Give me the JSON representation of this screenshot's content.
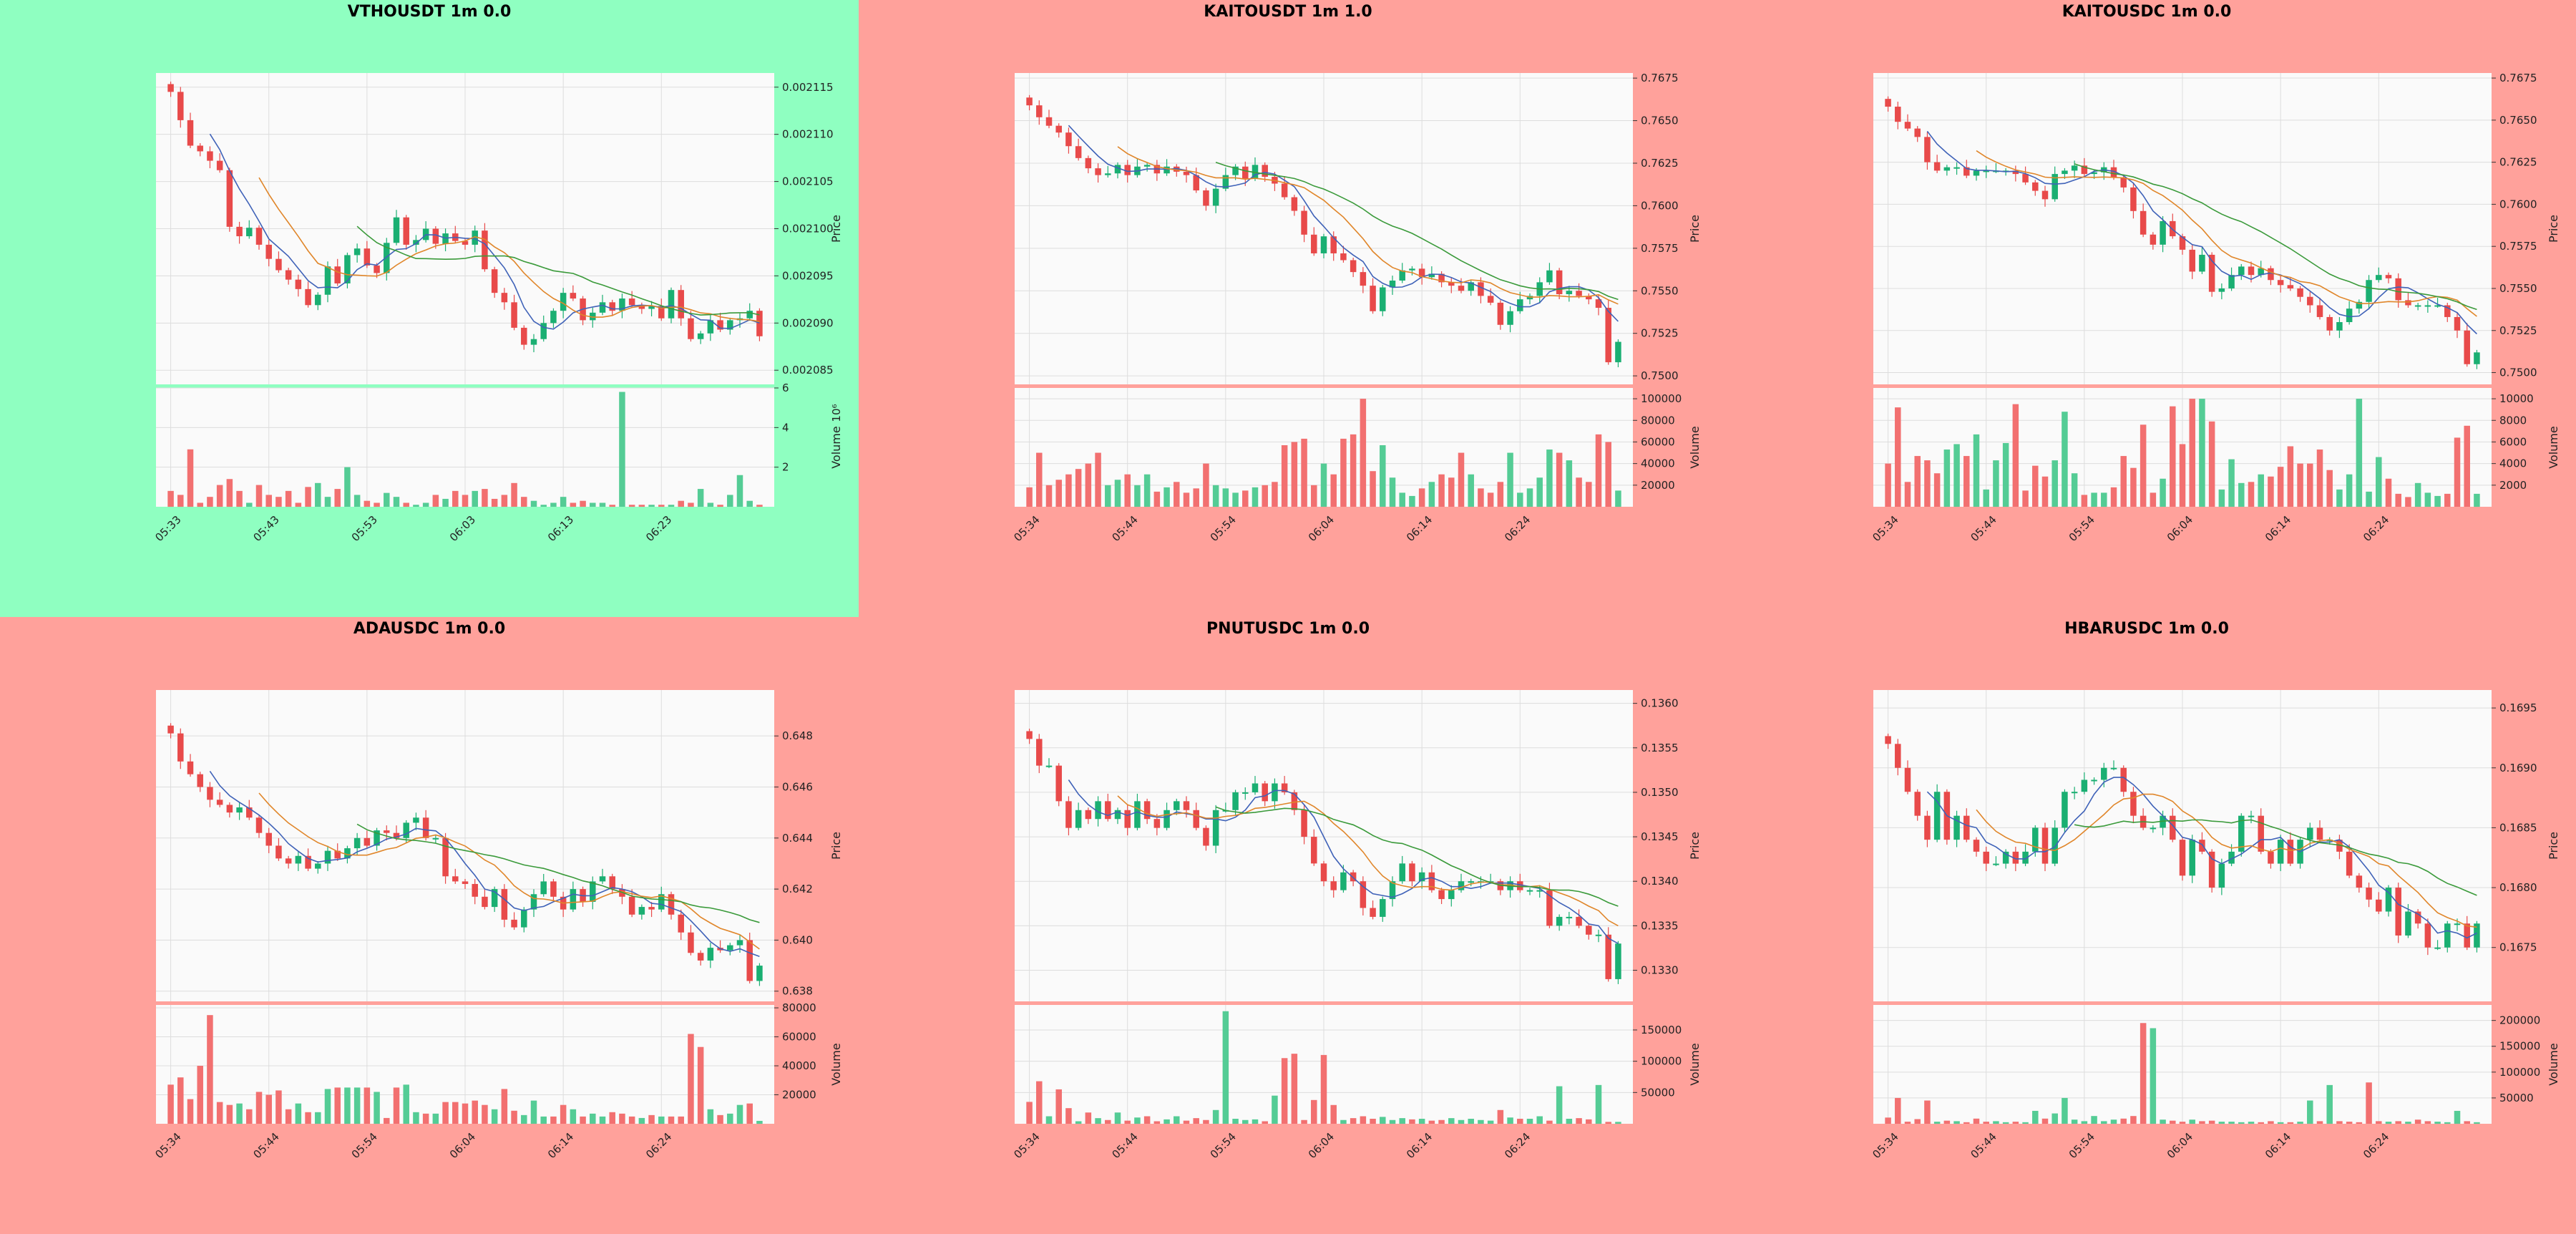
{
  "colors": {
    "page_bg": "#ffa19b",
    "highlight_bg": "#8fffc1",
    "plot_bg": "#fafafa",
    "grid": "#dddddd",
    "up": "#1aaf72",
    "down": "#e84a4a",
    "vol_up": "#54cc95",
    "vol_down": "#f27070",
    "ma_fast": "#3f62b8",
    "ma_mid": "#e0862a",
    "ma_slow": "#3a9a3a"
  },
  "chart_data": [
    {
      "type": "candlestick",
      "title": "VTHOUSDT 1m 0.0",
      "highlight": true,
      "ylabel": "Price",
      "vlabel": "Volume",
      "vlabel_exp": "10⁶",
      "ylim": [
        0.0020835,
        0.0021165
      ],
      "yticks": [
        0.002085,
        0.00209,
        0.002095,
        0.0021,
        0.002105,
        0.00211,
        0.002115
      ],
      "ytick_labels": [
        "0.002085",
        "0.002090",
        "0.002095",
        "0.002100",
        "0.002105",
        "0.002110",
        "0.002115"
      ],
      "vlim": [
        0,
        6
      ],
      "vticks": [
        2,
        4,
        6
      ],
      "vtick_labels": [
        "2",
        "4",
        "6"
      ],
      "xticks": [
        0,
        10,
        20,
        30,
        40,
        50
      ],
      "xtick_labels": [
        "05:33",
        "05:43",
        "05:53",
        "06:03",
        "06:13",
        "06:23"
      ],
      "n": 61,
      "close": [
        0.0021145,
        0.0021115,
        0.0021088,
        0.0021082,
        0.0021072,
        0.0021062,
        0.0021002,
        0.0020992,
        0.0021001,
        0.0020983,
        0.0020968,
        0.0020956,
        0.0020946,
        0.0020936,
        0.0020919,
        0.002093,
        0.002096,
        0.0020942,
        0.0020972,
        0.0020979,
        0.0020961,
        0.0020953,
        0.0020985,
        0.0021012,
        0.0020983,
        0.0020988,
        0.0021,
        0.0020984,
        0.0020995,
        0.0020987,
        0.0020983,
        0.0020998,
        0.0020957,
        0.0020932,
        0.0020922,
        0.0020895,
        0.0020877,
        0.0020883,
        0.00209,
        0.0020913,
        0.0020932,
        0.0020926,
        0.0020903,
        0.0020911,
        0.0020922,
        0.0020913,
        0.0020926,
        0.0020919,
        0.0020915,
        0.0020918,
        0.0020905,
        0.0020935,
        0.0020905,
        0.0020883,
        0.0020889,
        0.0020903,
        0.0020893,
        0.0020903,
        0.0020905,
        0.0020913,
        0.0020886
      ],
      "volume": [
        0.8,
        0.6,
        2.9,
        0.2,
        0.5,
        1.1,
        1.4,
        0.8,
        0.2,
        1.1,
        0.6,
        0.5,
        0.8,
        0.2,
        1.0,
        1.2,
        0.5,
        0.9,
        2.0,
        0.6,
        0.3,
        0.2,
        0.7,
        0.5,
        0.2,
        0.1,
        0.2,
        0.6,
        0.4,
        0.8,
        0.6,
        0.8,
        0.9,
        0.4,
        0.6,
        1.2,
        0.5,
        0.3,
        0.1,
        0.2,
        0.5,
        0.2,
        0.3,
        0.2,
        0.2,
        0.1,
        5.8,
        0.1,
        0.1,
        0.1,
        0.1,
        0.1,
        0.3,
        0.2,
        0.9,
        0.2,
        0.1,
        0.6,
        1.6,
        0.3,
        0.1
      ]
    },
    {
      "type": "candlestick",
      "title": "KAITOUSDT 1m 1.0",
      "highlight": false,
      "ylabel": "Price",
      "vlabel": "Volume",
      "vlabel_exp": "",
      "ylim": [
        0.7495,
        0.7678
      ],
      "yticks": [
        0.75,
        0.7525,
        0.755,
        0.7575,
        0.76,
        0.7625,
        0.765,
        0.7675
      ],
      "ytick_labels": [
        "0.7500",
        "0.7525",
        "0.7550",
        "0.7575",
        "0.7600",
        "0.7625",
        "0.7650",
        "0.7675"
      ],
      "vlim": [
        0,
        110000
      ],
      "vticks": [
        20000,
        40000,
        60000,
        80000,
        100000
      ],
      "vtick_labels": [
        "20000",
        "40000",
        "60000",
        "80000",
        "100000"
      ],
      "xticks": [
        0,
        10,
        20,
        30,
        40,
        50
      ],
      "xtick_labels": [
        "05:34",
        "05:44",
        "05:54",
        "06:04",
        "06:14",
        "06:24"
      ],
      "n": 61,
      "close": [
        0.7659,
        0.7652,
        0.7647,
        0.7643,
        0.7635,
        0.7628,
        0.7622,
        0.7618,
        0.7619,
        0.7624,
        0.7618,
        0.7623,
        0.7624,
        0.7619,
        0.7623,
        0.762,
        0.7618,
        0.7609,
        0.76,
        0.761,
        0.7618,
        0.7623,
        0.7616,
        0.7624,
        0.7617,
        0.7613,
        0.7605,
        0.7597,
        0.7583,
        0.7572,
        0.7582,
        0.7572,
        0.7568,
        0.7561,
        0.7553,
        0.7538,
        0.7552,
        0.7556,
        0.7562,
        0.7563,
        0.7558,
        0.756,
        0.7555,
        0.7553,
        0.755,
        0.7555,
        0.7547,
        0.7543,
        0.753,
        0.7538,
        0.7545,
        0.7547,
        0.7555,
        0.7562,
        0.7548,
        0.755,
        0.7547,
        0.7545,
        0.754,
        0.7508,
        0.752
      ],
      "volume": [
        18000,
        50000,
        20000,
        25000,
        30000,
        35000,
        40000,
        50000,
        20000,
        25000,
        30000,
        20000,
        30000,
        14000,
        18000,
        23000,
        13000,
        17000,
        40000,
        20000,
        17000,
        13000,
        15000,
        18000,
        20000,
        23000,
        57000,
        60000,
        63000,
        20000,
        40000,
        30000,
        63000,
        67000,
        100000,
        33000,
        57000,
        27000,
        13000,
        10000,
        17000,
        23000,
        30000,
        27000,
        50000,
        30000,
        17000,
        13000,
        23000,
        50000,
        13000,
        17000,
        27000,
        53000,
        50000,
        43000,
        27000,
        23000,
        67000,
        60000,
        15000
      ]
    },
    {
      "type": "candlestick",
      "title": "KAITOUSDC 1m 0.0",
      "highlight": false,
      "ylabel": "Price",
      "vlabel": "Volume",
      "vlabel_exp": "",
      "ylim": [
        0.7493,
        0.7678
      ],
      "yticks": [
        0.75,
        0.7525,
        0.755,
        0.7575,
        0.76,
        0.7625,
        0.765,
        0.7675
      ],
      "ytick_labels": [
        "0.7500",
        "0.7525",
        "0.7550",
        "0.7575",
        "0.7600",
        "0.7625",
        "0.7650",
        "0.7675"
      ],
      "vlim": [
        0,
        11000
      ],
      "vticks": [
        2000,
        4000,
        6000,
        8000,
        10000
      ],
      "vtick_labels": [
        "2000",
        "4000",
        "6000",
        "8000",
        "10000"
      ],
      "xticks": [
        0,
        10,
        20,
        30,
        40,
        50
      ],
      "xtick_labels": [
        "05:34",
        "05:44",
        "05:54",
        "06:04",
        "06:14",
        "06:24"
      ],
      "n": 61,
      "close": [
        0.7658,
        0.7649,
        0.7645,
        0.764,
        0.7625,
        0.762,
        0.7622,
        0.7622,
        0.7617,
        0.762,
        0.762,
        0.762,
        0.762,
        0.7618,
        0.7613,
        0.7608,
        0.7603,
        0.7618,
        0.762,
        0.7623,
        0.7618,
        0.7619,
        0.7622,
        0.7616,
        0.761,
        0.7596,
        0.7582,
        0.7576,
        0.759,
        0.7581,
        0.7573,
        0.756,
        0.757,
        0.7548,
        0.755,
        0.7558,
        0.7563,
        0.7558,
        0.7562,
        0.7555,
        0.7552,
        0.755,
        0.7545,
        0.754,
        0.7533,
        0.7525,
        0.753,
        0.7538,
        0.7542,
        0.7555,
        0.7558,
        0.7556,
        0.7543,
        0.754,
        0.754,
        0.754,
        0.754,
        0.7533,
        0.7525,
        0.7505,
        0.7512
      ],
      "volume": [
        4000,
        9200,
        2300,
        4700,
        4300,
        3100,
        5300,
        5800,
        4700,
        6700,
        1600,
        4300,
        5900,
        9500,
        1500,
        3800,
        2800,
        4300,
        8800,
        3100,
        1100,
        1300,
        1300,
        1800,
        4700,
        3600,
        7600,
        1300,
        2600,
        9300,
        5800,
        10000,
        10000,
        7900,
        1600,
        4400,
        2200,
        2300,
        3000,
        2800,
        3700,
        5600,
        4000,
        4000,
        5300,
        3400,
        1600,
        3000,
        10000,
        1400,
        4600,
        2600,
        1200,
        900,
        2200,
        1300,
        1000,
        1200,
        6400,
        7500,
        1200
      ]
    },
    {
      "type": "candlestick",
      "title": "ADAUSDC 1m 0.0",
      "highlight": false,
      "ylabel": "Price",
      "vlabel": "Volume",
      "vlabel_exp": "",
      "ylim": [
        0.6376,
        0.6498
      ],
      "yticks": [
        0.638,
        0.64,
        0.642,
        0.644,
        0.646,
        0.648
      ],
      "ytick_labels": [
        "0.638",
        "0.640",
        "0.642",
        "0.644",
        "0.646",
        "0.648"
      ],
      "vlim": [
        0,
        82000
      ],
      "vticks": [
        20000,
        40000,
        60000,
        80000
      ],
      "vtick_labels": [
        "20000",
        "40000",
        "60000",
        "80000"
      ],
      "xticks": [
        0,
        10,
        20,
        30,
        40,
        50
      ],
      "xtick_labels": [
        "05:34",
        "05:44",
        "05:54",
        "06:04",
        "06:14",
        "06:24"
      ],
      "n": 61,
      "close": [
        0.6481,
        0.647,
        0.6465,
        0.646,
        0.6455,
        0.6453,
        0.645,
        0.6452,
        0.6448,
        0.6442,
        0.6437,
        0.6432,
        0.643,
        0.6433,
        0.6428,
        0.643,
        0.6435,
        0.6432,
        0.6436,
        0.644,
        0.6437,
        0.6443,
        0.6442,
        0.644,
        0.6446,
        0.6448,
        0.644,
        0.644,
        0.6425,
        0.6423,
        0.6422,
        0.6417,
        0.6413,
        0.642,
        0.6408,
        0.6405,
        0.6412,
        0.6418,
        0.6423,
        0.6417,
        0.6412,
        0.642,
        0.6415,
        0.6423,
        0.6425,
        0.642,
        0.6417,
        0.641,
        0.6413,
        0.6412,
        0.6418,
        0.641,
        0.6403,
        0.6395,
        0.6392,
        0.6397,
        0.6396,
        0.6398,
        0.64,
        0.6384,
        0.639
      ],
      "volume": [
        27000,
        32000,
        17000,
        40000,
        75000,
        15000,
        13000,
        14000,
        10000,
        22000,
        20000,
        23000,
        10000,
        14000,
        8000,
        8000,
        24000,
        25000,
        25000,
        25000,
        25000,
        22000,
        4000,
        25000,
        27000,
        8000,
        7000,
        7000,
        15000,
        15000,
        14000,
        16000,
        13000,
        10000,
        24000,
        9000,
        6000,
        16000,
        5000,
        5000,
        13000,
        10000,
        5000,
        7000,
        5000,
        8000,
        7000,
        5000,
        4000,
        6000,
        5000,
        5000,
        5000,
        62000,
        53000,
        10000,
        6000,
        7000,
        13000,
        14000,
        2000
      ]
    },
    {
      "type": "candlestick",
      "title": "PNUTUSDC 1m 0.0",
      "highlight": false,
      "ylabel": "Price",
      "vlabel": "Volume",
      "vlabel_exp": "",
      "ylim": [
        0.13265,
        0.13615
      ],
      "yticks": [
        0.133,
        0.1335,
        0.134,
        0.1345,
        0.135,
        0.1355,
        0.136
      ],
      "ytick_labels": [
        "0.1330",
        "0.1335",
        "0.1340",
        "0.1345",
        "0.1350",
        "0.1355",
        "0.1360"
      ],
      "vlim": [
        0,
        190000
      ],
      "vticks": [
        50000,
        100000,
        150000
      ],
      "vtick_labels": [
        "50000",
        "100000",
        "150000"
      ],
      "xticks": [
        0,
        10,
        20,
        30,
        40,
        50
      ],
      "xtick_labels": [
        "05:34",
        "05:44",
        "05:54",
        "06:04",
        "06:14",
        "06:24"
      ],
      "n": 61,
      "close": [
        0.1356,
        0.1353,
        0.1353,
        0.1349,
        0.1346,
        0.1348,
        0.1347,
        0.1349,
        0.1347,
        0.1348,
        0.1346,
        0.1349,
        0.1347,
        0.1346,
        0.1348,
        0.1349,
        0.1348,
        0.1346,
        0.1344,
        0.1348,
        0.1348,
        0.135,
        0.135,
        0.1351,
        0.1349,
        0.1351,
        0.135,
        0.1348,
        0.1345,
        0.1342,
        0.134,
        0.1339,
        0.1341,
        0.134,
        0.1337,
        0.1336,
        0.1338,
        0.134,
        0.1342,
        0.134,
        0.1341,
        0.1339,
        0.1338,
        0.1339,
        0.134,
        0.134,
        0.134,
        0.134,
        0.1339,
        0.134,
        0.1339,
        0.1339,
        0.1339,
        0.1335,
        0.1336,
        0.1336,
        0.1335,
        0.1334,
        0.1334,
        0.1329,
        0.1333
      ],
      "volume": [
        35000,
        68000,
        12000,
        55000,
        25000,
        4000,
        18000,
        9000,
        6000,
        18000,
        5000,
        10000,
        12000,
        4000,
        7000,
        12000,
        5000,
        9000,
        6000,
        22000,
        180000,
        8000,
        6000,
        7000,
        4000,
        45000,
        105000,
        112000,
        6000,
        38000,
        110000,
        30000,
        6000,
        9000,
        12000,
        8000,
        11000,
        6000,
        9000,
        7000,
        8000,
        5000,
        6000,
        9000,
        6000,
        8000,
        6000,
        5000,
        22000,
        10000,
        8000,
        8000,
        12000,
        5000,
        60000,
        8000,
        9000,
        7000,
        62000,
        3000,
        3000
      ]
    },
    {
      "type": "candlestick",
      "title": "HBARUSDC 1m 0.0",
      "highlight": false,
      "ylabel": "Price",
      "vlabel": "Volume",
      "vlabel_exp": "",
      "ylim": [
        0.16705,
        0.16965
      ],
      "yticks": [
        0.1675,
        0.168,
        0.1685,
        0.169,
        0.1695
      ],
      "ytick_labels": [
        "0.1675",
        "0.1680",
        "0.1685",
        "0.1690",
        "0.1695"
      ],
      "vlim": [
        0,
        230000
      ],
      "vticks": [
        50000,
        100000,
        150000,
        200000
      ],
      "vtick_labels": [
        "50000",
        "100000",
        "150000",
        "200000"
      ],
      "xticks": [
        0,
        10,
        20,
        30,
        40,
        50
      ],
      "xtick_labels": [
        "05:34",
        "05:44",
        "05:54",
        "06:04",
        "06:14",
        "06:24"
      ],
      "n": 61,
      "close": [
        0.1692,
        0.169,
        0.1688,
        0.1686,
        0.1684,
        0.1688,
        0.1684,
        0.1686,
        0.1684,
        0.1683,
        0.1682,
        0.1682,
        0.1683,
        0.1682,
        0.1683,
        0.1685,
        0.1682,
        0.1685,
        0.1688,
        0.1688,
        0.1689,
        0.1689,
        0.169,
        0.169,
        0.1688,
        0.1686,
        0.1685,
        0.1685,
        0.1686,
        0.1684,
        0.1681,
        0.1684,
        0.1683,
        0.168,
        0.1682,
        0.1683,
        0.1686,
        0.1686,
        0.1683,
        0.1682,
        0.1684,
        0.1682,
        0.1684,
        0.1685,
        0.1684,
        0.1684,
        0.1683,
        0.1681,
        0.168,
        0.1679,
        0.1678,
        0.168,
        0.1676,
        0.1678,
        0.1677,
        0.1675,
        0.1675,
        0.1677,
        0.1677,
        0.1675,
        0.1677
      ],
      "volume": [
        12000,
        50000,
        4000,
        9000,
        45000,
        4000,
        6000,
        5000,
        3000,
        10000,
        4000,
        5000,
        3000,
        4000,
        3000,
        25000,
        10000,
        20000,
        50000,
        8000,
        5000,
        15000,
        5000,
        8000,
        10000,
        15000,
        195000,
        185000,
        8000,
        6000,
        4000,
        8000,
        5000,
        6000,
        4000,
        4000,
        3000,
        4000,
        3000,
        5000,
        3000,
        3000,
        4000,
        45000,
        5000,
        75000,
        5000,
        4000,
        3000,
        80000,
        5000,
        4000,
        5000,
        4000,
        8000,
        5000,
        4000,
        3000,
        25000,
        5000,
        3000
      ]
    }
  ]
}
